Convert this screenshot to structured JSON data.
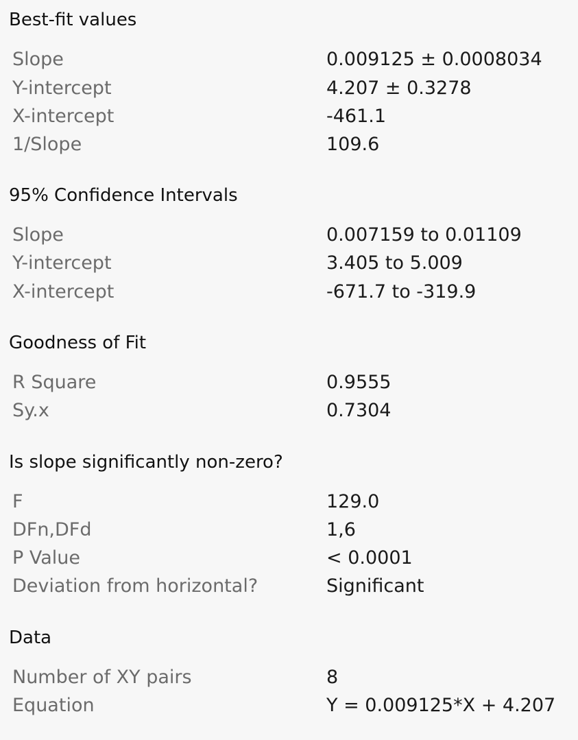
{
  "sections": [
    {
      "title": "Best-fit values",
      "rows": [
        {
          "label": "Slope",
          "value": "0.009125 ± 0.0008034"
        },
        {
          "label": "Y-intercept",
          "value": "4.207 ± 0.3278"
        },
        {
          "label": "X-intercept",
          "value": "-461.1"
        },
        {
          "label": "1/Slope",
          "value": "109.6"
        }
      ]
    },
    {
      "title": "95% Confidence Intervals",
      "rows": [
        {
          "label": "Slope",
          "value": "0.007159 to 0.01109"
        },
        {
          "label": "Y-intercept",
          "value": "3.405 to 5.009"
        },
        {
          "label": "X-intercept",
          "value": "-671.7 to -319.9"
        }
      ]
    },
    {
      "title": "Goodness of Fit",
      "rows": [
        {
          "label": "R Square",
          "value": "0.9555"
        },
        {
          "label": "Sy.x",
          "value": "0.7304"
        }
      ]
    },
    {
      "title": "Is slope significantly non-zero?",
      "rows": [
        {
          "label": "F",
          "value": "129.0"
        },
        {
          "label": "DFn,DFd",
          "value": "1,6"
        },
        {
          "label": "P Value",
          "value": "< 0.0001"
        },
        {
          "label": "Deviation from horizontal?",
          "value": "Significant"
        }
      ]
    },
    {
      "title": "Data",
      "rows": [
        {
          "label": "Number of XY pairs",
          "value": "8"
        },
        {
          "label": "Equation",
          "value": "Y = 0.009125*X + 4.207"
        }
      ]
    }
  ]
}
